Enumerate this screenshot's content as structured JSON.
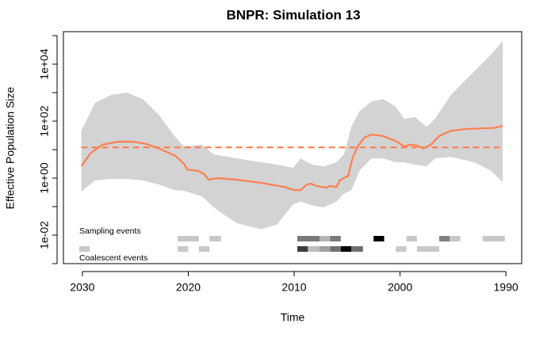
{
  "chart_data": {
    "type": "bnpr",
    "title": "BNPR: Simulation 13",
    "x_label": "Time",
    "y_label": "Effective Population Size",
    "log_y": true,
    "xlim": [
      2031.79,
      1988.51
    ],
    "xticks": [
      2030,
      2020,
      2010,
      2000,
      1990
    ],
    "ylim": [
      0.001,
      138000
    ],
    "yticks": [
      {
        "value": 0.01,
        "label": "1e-02"
      },
      {
        "value": 1,
        "label": "1e+00"
      },
      {
        "value": 100,
        "label": "1e+02"
      },
      {
        "value": 10000,
        "label": "1e+04"
      }
    ],
    "yminor_ticks": [
      0.001,
      0.1,
      10,
      1000,
      100000
    ],
    "interval": {
      "color": "#d3d3d3",
      "x": [
        2030.1,
        2028.8,
        2027.3,
        2025.8,
        2024.3,
        2022.8,
        2021.3,
        2020.4,
        2018.7,
        2017.6,
        2015.4,
        2013.1,
        2011.6,
        2010.1,
        2009.4,
        2008.3,
        2007.2,
        2006.0,
        2005.3,
        2004.6,
        2003.8,
        2002.7,
        2001.6,
        2000.4,
        1999.6,
        1998.6,
        1997.5,
        1996.7,
        1995.2,
        1993.0,
        1991.5,
        1990.3
      ],
      "upper": [
        46,
        440,
        830,
        1000,
        600,
        170,
        30,
        13,
        15,
        6.8,
        4.9,
        3.6,
        3.0,
        2.3,
        4.9,
        3.0,
        2.6,
        3.6,
        6.8,
        64,
        230,
        490,
        600,
        320,
        120,
        140,
        64,
        120,
        830,
        5600,
        20000,
        64000
      ],
      "lower": [
        0.34,
        0.83,
        0.94,
        0.94,
        0.83,
        0.6,
        0.38,
        0.36,
        0.23,
        0.094,
        0.026,
        0.016,
        0.024,
        0.12,
        0.15,
        0.11,
        0.094,
        0.15,
        0.28,
        0.38,
        1.9,
        4.9,
        4.9,
        3.6,
        3.6,
        3.0,
        2.6,
        4.9,
        5.6,
        3.6,
        1.9,
        0.73
      ]
    },
    "median": {
      "color": "#ff7f50",
      "x": [
        2030.1,
        2029.2,
        2028.1,
        2026.6,
        2025.2,
        2024.0,
        2022.5,
        2021.2,
        2020.4,
        2020.1,
        2019.1,
        2018.5,
        2018.1,
        2017.2,
        2015.4,
        2013.1,
        2010.9,
        2010.0,
        2009.4,
        2008.8,
        2008.4,
        2007.9,
        2007.3,
        2007.0,
        2006.6,
        2006.0,
        2005.7,
        2005.2,
        2004.9,
        2004.5,
        2004.0,
        2003.4,
        2002.7,
        2001.6,
        2000.4,
        1999.6,
        1999.0,
        1998.4,
        1997.8,
        1997.1,
        1996.3,
        1995.2,
        1993.7,
        1992.2,
        1991.1,
        1990.3
      ],
      "values": [
        2.6,
        7.7,
        15,
        19,
        19,
        16,
        10,
        6.0,
        3.2,
        2.0,
        1.8,
        1.4,
        0.88,
        1.0,
        0.88,
        0.68,
        0.49,
        0.38,
        0.38,
        0.6,
        0.64,
        0.53,
        0.49,
        0.46,
        0.53,
        0.49,
        0.83,
        1.07,
        1.2,
        4.9,
        13,
        26,
        34,
        30,
        20,
        13,
        15,
        14,
        11,
        15,
        30,
        46,
        53,
        56,
        58,
        68
      ]
    },
    "reference": {
      "color": "#ff7f50",
      "value": 12,
      "x": [
        2030.1,
        1990.3
      ]
    },
    "sampling_events": {
      "label": "Sampling events",
      "cells": [
        {
          "x": [
            2021.0,
            2019.0
          ],
          "color": "#c8c8c8"
        },
        {
          "x": [
            2018.0,
            2016.9
          ],
          "color": "#c8c8c8"
        },
        {
          "x": [
            2009.7,
            2007.6
          ],
          "color": "#7a7a7a"
        },
        {
          "x": [
            2007.6,
            2006.6
          ],
          "color": "#b4b4b4"
        },
        {
          "x": [
            2006.6,
            2005.6
          ],
          "color": "#7a7a7a"
        },
        {
          "x": [
            2002.5,
            2001.5
          ],
          "color": "#000000"
        },
        {
          "x": [
            1999.4,
            1998.4
          ],
          "color": "#c8c8c8"
        },
        {
          "x": [
            1996.3,
            1995.3
          ],
          "color": "#808080"
        },
        {
          "x": [
            1995.3,
            1994.3
          ],
          "color": "#c8c8c8"
        },
        {
          "x": [
            1992.2,
            1990.1
          ],
          "color": "#c8c8c8"
        }
      ]
    },
    "coalescent_events": {
      "label": "Coalescent events",
      "cells": [
        {
          "x": [
            2030.3,
            2029.3
          ],
          "color": "#c8c8c8"
        },
        {
          "x": [
            2021.0,
            2020.0
          ],
          "color": "#c8c8c8"
        },
        {
          "x": [
            2019.0,
            2018.0
          ],
          "color": "#c8c8c8"
        },
        {
          "x": [
            2009.7,
            2008.7
          ],
          "color": "#3c3c3c"
        },
        {
          "x": [
            2008.7,
            2007.6
          ],
          "color": "#bdbdbd"
        },
        {
          "x": [
            2007.6,
            2006.6
          ],
          "color": "#a0a0a0"
        },
        {
          "x": [
            2006.6,
            2005.6
          ],
          "color": "#707070"
        },
        {
          "x": [
            2005.6,
            2004.6
          ],
          "color": "#000000"
        },
        {
          "x": [
            2004.6,
            2003.5
          ],
          "color": "#6e6e6e"
        },
        {
          "x": [
            2000.4,
            1999.4
          ],
          "color": "#c8c8c8"
        },
        {
          "x": [
            1998.4,
            1996.3
          ],
          "color": "#c8c8c8"
        }
      ]
    }
  }
}
